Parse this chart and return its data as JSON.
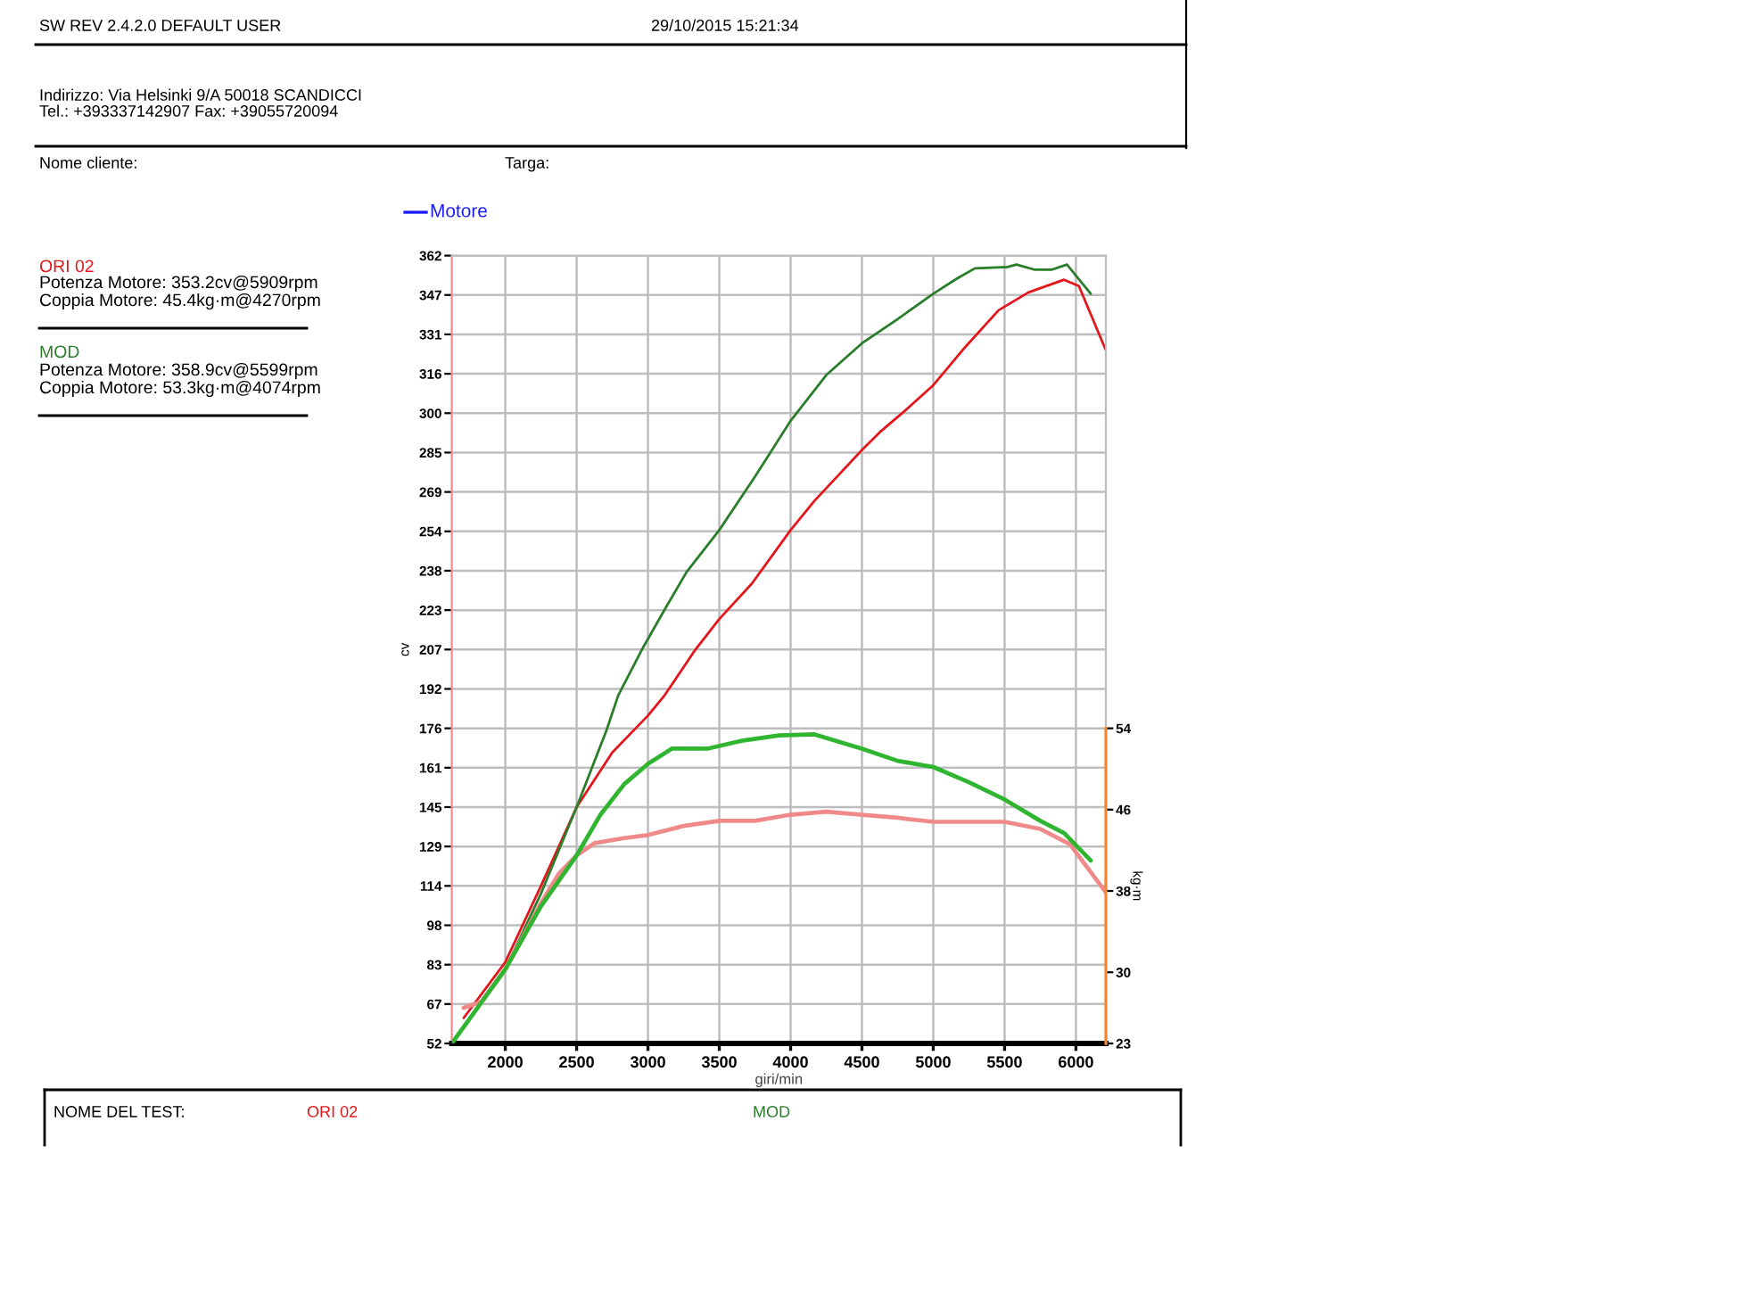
{
  "chart_data": {
    "type": "line",
    "xlabel": "giri/min",
    "ylabel": "cv",
    "y2label": "kg·m",
    "annotations": [
      "SW REV 2.4.2.0 DEFAULT USER",
      "29/10/2015 15:21:34",
      "Indirizzo: Via Helsinki 9/A 50018 SCANDICCI",
      "Tel.: +393337142907 Fax: +39055720094",
      "Nome cliente:",
      "Targa:",
      "Motore",
      "Potenza Motore: 353.2cv@5909rpm",
      "Coppia Motore: 45.4kg·m@4270rpm",
      "Potenza Motore: 358.9cv@5599rpm",
      "Coppia Motore: 53.3kg·m@4074rpm",
      "NOME DEL TEST:"
    ],
    "xlim": [
      1625,
      6210
    ],
    "xticks": [
      2000,
      2500,
      3000,
      3500,
      4000,
      4500,
      5000,
      5500,
      6000
    ],
    "ylim": [
      52,
      362
    ],
    "yticks": [
      52,
      {
        "value": 67.5,
        "label": "67"
      },
      83,
      {
        "value": 98.5,
        "label": "98"
      },
      114,
      {
        "value": 129.5,
        "label": "129"
      },
      145,
      {
        "value": 160.5,
        "label": "161"
      },
      176,
      {
        "value": 191.5,
        "label": "192"
      },
      207,
      {
        "value": 222.5,
        "label": "223"
      },
      238,
      {
        "value": 253.5,
        "label": "254"
      },
      269,
      {
        "value": 284.5,
        "label": "285"
      },
      300,
      {
        "value": 315.5,
        "label": "316"
      },
      331,
      {
        "value": 346.5,
        "label": "347"
      },
      362
    ],
    "y2lim": [
      23,
      100.5
    ],
    "y2ticks": [
      23,
      30,
      38,
      46,
      54
    ],
    "grid": true,
    "series": [
      {
        "name": "ORI 02",
        "color": "#e3161b",
        "x": [
          1708,
          2000,
          2250,
          2500,
          2750,
          3000,
          3117,
          3333,
          3500,
          3729,
          4000,
          4167,
          4500,
          4625,
          4792,
          5000,
          5208,
          5458,
          5667,
          5917,
          6021,
          6208
        ],
        "values": [
          62,
          84,
          114,
          145,
          166.5,
          181,
          189,
          207,
          219,
          233,
          254,
          265.5,
          285.5,
          292.5,
          300.5,
          311,
          325,
          340.5,
          347.5,
          352.5,
          350,
          325
        ]
      },
      {
        "name": "MOD",
        "color": "#2a7d2a",
        "x": [
          1625,
          2000,
          2250,
          2500,
          2708,
          2792,
          2958,
          3125,
          3271,
          3500,
          3750,
          4000,
          4250,
          4500,
          4750,
          5000,
          5167,
          5292,
          5521,
          5583,
          5708,
          5833,
          5937,
          6104
        ],
        "values": [
          52,
          81,
          111,
          145,
          175,
          189,
          207,
          223.5,
          237.5,
          254,
          275,
          297,
          315,
          327.5,
          337,
          347,
          353,
          357,
          357.5,
          358.5,
          356.5,
          356.5,
          358.5,
          347
        ]
      },
      {
        "color": "#f08a8a",
        "axis": "y2",
        "x": [
          1708,
          1833,
          2000,
          2250,
          2375,
          2500,
          2625,
          2833,
          3000,
          3250,
          3500,
          3750,
          4000,
          4250,
          4500,
          4750,
          5000,
          5250,
          5500,
          5750,
          5958,
          6208
        ],
        "values": [
          26.5,
          27.1,
          30.3,
          36.8,
          39.7,
          41.5,
          42.7,
          43.2,
          43.5,
          44.4,
          44.9,
          44.9,
          45.5,
          45.8,
          45.5,
          45.2,
          44.8,
          44.8,
          44.8,
          44.1,
          42.6,
          37.9
        ]
      },
      {
        "color": "#2fb52f",
        "axis": "y2",
        "x": [
          1625,
          2000,
          2250,
          2500,
          2667,
          2833,
          3000,
          3167,
          3417,
          3667,
          3917,
          4167,
          4500,
          4750,
          5000,
          5250,
          5500,
          5750,
          5917,
          6104
        ],
        "values": [
          23,
          30.3,
          36.5,
          41.5,
          45.5,
          48.5,
          50.5,
          52,
          52,
          52.8,
          53.3,
          53.4,
          52,
          50.8,
          50.2,
          48.7,
          47,
          44.9,
          43.7,
          41
        ]
      }
    ]
  }
}
